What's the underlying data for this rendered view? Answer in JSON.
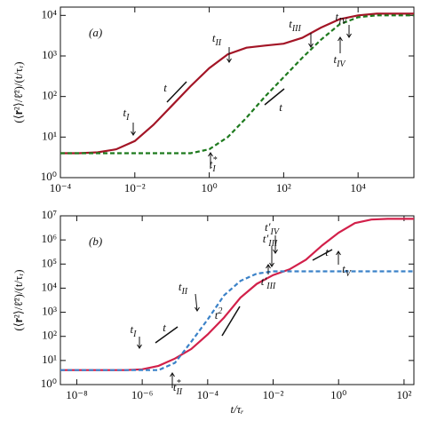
{
  "chart_data": [
    {
      "type": "line",
      "panel_label": "(a)",
      "ylabel": "(⟨𝐫²⟩/ℓ̄²)/(t/τᵣ)",
      "log_x": true,
      "log_y": true,
      "x": [
        0.0001,
        0.000316,
        0.001,
        0.00316,
        0.01,
        0.0316,
        0.1,
        0.316,
        1,
        3.16,
        10,
        31.6,
        100,
        316,
        1000,
        3160,
        10000,
        31600,
        100000,
        316000
      ],
      "series": [
        {
          "color": "#a31526",
          "dash": false,
          "values": [
            4,
            4,
            4.2,
            5,
            8,
            20,
            60,
            180,
            500,
            1100,
            1600,
            1800,
            2000,
            2800,
            5000,
            8000,
            10000,
            11000,
            11000,
            11000
          ]
        },
        {
          "color": "#1e7a1e",
          "dash": true,
          "values": [
            4,
            4,
            4,
            4,
            4,
            4,
            4,
            4,
            5,
            10,
            30,
            100,
            300,
            900,
            2500,
            6000,
            9000,
            10000,
            10000,
            10000
          ]
        }
      ],
      "xlim": [
        0.0001,
        316000
      ],
      "ylim": [
        1,
        16000
      ],
      "xticks": [
        {
          "value": 0.0001,
          "label": "10⁻⁴"
        },
        {
          "value": 0.01,
          "label": "10⁻²"
        },
        {
          "value": 1,
          "label": "10⁰"
        },
        {
          "value": 100,
          "label": "10²"
        },
        {
          "value": 10000,
          "label": "10⁴"
        }
      ],
      "yticks": [
        {
          "value": 1,
          "label": "10⁰"
        },
        {
          "value": 10,
          "label": "10¹"
        },
        {
          "value": 100,
          "label": "10²"
        },
        {
          "value": 1000,
          "label": "10³"
        },
        {
          "value": 10000,
          "label": "10⁴"
        }
      ],
      "annotations": [
        {
          "text": "t",
          "sub": "I"
        },
        {
          "text": "t",
          "sub": "II"
        },
        {
          "text": "t",
          "sub": "III"
        },
        {
          "text": "t",
          "sub": "IV"
        },
        {
          "text": "t",
          "sub": "IV"
        },
        {
          "text": "t",
          "sup": "*",
          "sub": "I"
        },
        {
          "text": "t"
        },
        {
          "text": "t"
        }
      ]
    },
    {
      "type": "line",
      "panel_label": "(b)",
      "ylabel": "(⟨𝐫²⟩/ℓ̄²)/(t/τᵣ)",
      "xlabel": "t/τᵣ",
      "log_x": true,
      "log_y": true,
      "x": [
        3.16e-09,
        1e-08,
        3.16e-08,
        1e-07,
        3.16e-07,
        1e-06,
        3.16e-06,
        1e-05,
        3.16e-05,
        0.0001,
        0.000316,
        0.001,
        0.00316,
        0.01,
        0.0316,
        0.1,
        0.316,
        1,
        3.16,
        10,
        31.6,
        100,
        200
      ],
      "series": [
        {
          "color": "#d2204a",
          "dash": false,
          "values": [
            4,
            4,
            4,
            4,
            4,
            4.3,
            6,
            12,
            30,
            120,
            600,
            4000,
            15000,
            35000,
            60000,
            150000,
            600000,
            2000000,
            5000000,
            7000000,
            7500000,
            7500000,
            7500000
          ]
        },
        {
          "color": "#3b82c8",
          "dash": true,
          "values": [
            4,
            4,
            4,
            4,
            4,
            4,
            4,
            8,
            60,
            500,
            5000,
            20000,
            40000,
            50000,
            50000,
            50000,
            50000,
            50000,
            50000,
            50000,
            50000,
            50000,
            50000
          ]
        }
      ],
      "xlim": [
        3.16e-09,
        200
      ],
      "ylim": [
        1,
        10000000
      ],
      "xticks": [
        {
          "value": 1e-08,
          "label": "10⁻⁸"
        },
        {
          "value": 1e-06,
          "label": "10⁻⁶"
        },
        {
          "value": 0.0001,
          "label": "10⁻⁴"
        },
        {
          "value": 0.01,
          "label": "10⁻²"
        },
        {
          "value": 1,
          "label": "10⁰"
        },
        {
          "value": 100,
          "label": "10²"
        }
      ],
      "yticks": [
        {
          "value": 1,
          "label": "10⁰"
        },
        {
          "value": 10,
          "label": "10¹"
        },
        {
          "value": 100,
          "label": "10²"
        },
        {
          "value": 1000,
          "label": "10³"
        },
        {
          "value": 10000,
          "label": "10⁴"
        },
        {
          "value": 100000,
          "label": "10⁵"
        },
        {
          "value": 1000000,
          "label": "10⁶"
        },
        {
          "value": 10000000,
          "label": "10⁷"
        }
      ],
      "annotations": [
        {
          "text": "t",
          "sub": "I"
        },
        {
          "text": "t",
          "sub": "II"
        },
        {
          "text": "t′",
          "sub": "III"
        },
        {
          "text": "t′",
          "sub": "III"
        },
        {
          "text": "t′",
          "sub": "IV"
        },
        {
          "text": "t",
          "sup": "*",
          "sub": "II"
        },
        {
          "text": "t",
          "sub": "V"
        },
        {
          "text": "t"
        },
        {
          "text": "t",
          "sup": "2"
        },
        {
          "text": "t"
        }
      ]
    }
  ]
}
